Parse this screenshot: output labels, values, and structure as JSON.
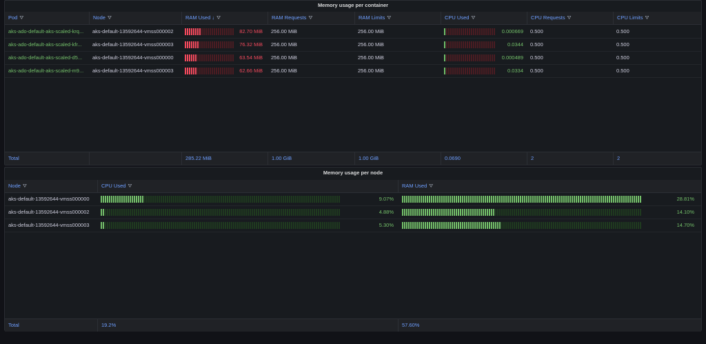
{
  "panel1": {
    "title": "Memory usage per container",
    "headers": [
      "Pod",
      "Node",
      "RAM Used",
      "RAM Requests",
      "RAM Limits",
      "CPU Used",
      "CPU Requests",
      "CPU Limits"
    ],
    "sort_indicator": "↓",
    "rows": [
      {
        "pod": "aks-ado-default-aks-scaled-krq...",
        "node": "aks-default-13592644-vmss000002",
        "ram_used": "82.70 MiB",
        "ram_used_level": 0.32,
        "ram_requests": "256.00 MiB",
        "ram_limits": "256.00 MiB",
        "cpu_used": "0.000669",
        "cpu_used_level": 0.02,
        "cpu_requests": "0.500",
        "cpu_limits": "0.500"
      },
      {
        "pod": "aks-ado-default-aks-scaled-kfr...",
        "node": "aks-default-13592644-vmss000003",
        "ram_used": "76.32 MiB",
        "ram_used_level": 0.3,
        "ram_requests": "256.00 MiB",
        "ram_limits": "256.00 MiB",
        "cpu_used": "0.0344",
        "cpu_used_level": 0.03,
        "cpu_requests": "0.500",
        "cpu_limits": "0.500"
      },
      {
        "pod": "aks-ado-default-aks-scaled-d5...",
        "node": "aks-default-13592644-vmss000000",
        "ram_used": "63.54 MiB",
        "ram_used_level": 0.25,
        "ram_requests": "256.00 MiB",
        "ram_limits": "256.00 MiB",
        "cpu_used": "0.000489",
        "cpu_used_level": 0.02,
        "cpu_requests": "0.500",
        "cpu_limits": "0.500"
      },
      {
        "pod": "aks-ado-default-aks-scaled-m9...",
        "node": "aks-default-13592644-vmss000003",
        "ram_used": "62.66 MiB",
        "ram_used_level": 0.25,
        "ram_requests": "256.00 MiB",
        "ram_limits": "256.00 MiB",
        "cpu_used": "0.0334",
        "cpu_used_level": 0.03,
        "cpu_requests": "0.500",
        "cpu_limits": "0.500"
      }
    ],
    "footer": [
      "Total",
      "",
      "285.22 MiB",
      "1.00 GiB",
      "1.00 GiB",
      "0.0690",
      "2",
      "2"
    ]
  },
  "panel2": {
    "title": "Memory usage per node",
    "headers": [
      "Node",
      "CPU Used",
      "RAM Used"
    ],
    "rows": [
      {
        "node": "aks-default-13592644-vmss000000",
        "cpu_used": "9.07%",
        "cpu_level": 0.18,
        "ram_used": "28.81%",
        "ram_level": 1.0
      },
      {
        "node": "aks-default-13592644-vmss000002",
        "cpu_used": "4.88%",
        "cpu_level": 0.02,
        "ram_used": "14.10%",
        "ram_level": 0.39
      },
      {
        "node": "aks-default-13592644-vmss000003",
        "cpu_used": "5.30%",
        "cpu_level": 0.02,
        "ram_used": "14.70%",
        "ram_level": 0.41
      }
    ],
    "footer": [
      "Total",
      "19.2%",
      "57.60%"
    ]
  },
  "colors": {
    "green": "#73bf69",
    "red": "#f2495c",
    "link": "#6e9fff"
  },
  "icons": {
    "filter": "funnel-icon"
  }
}
